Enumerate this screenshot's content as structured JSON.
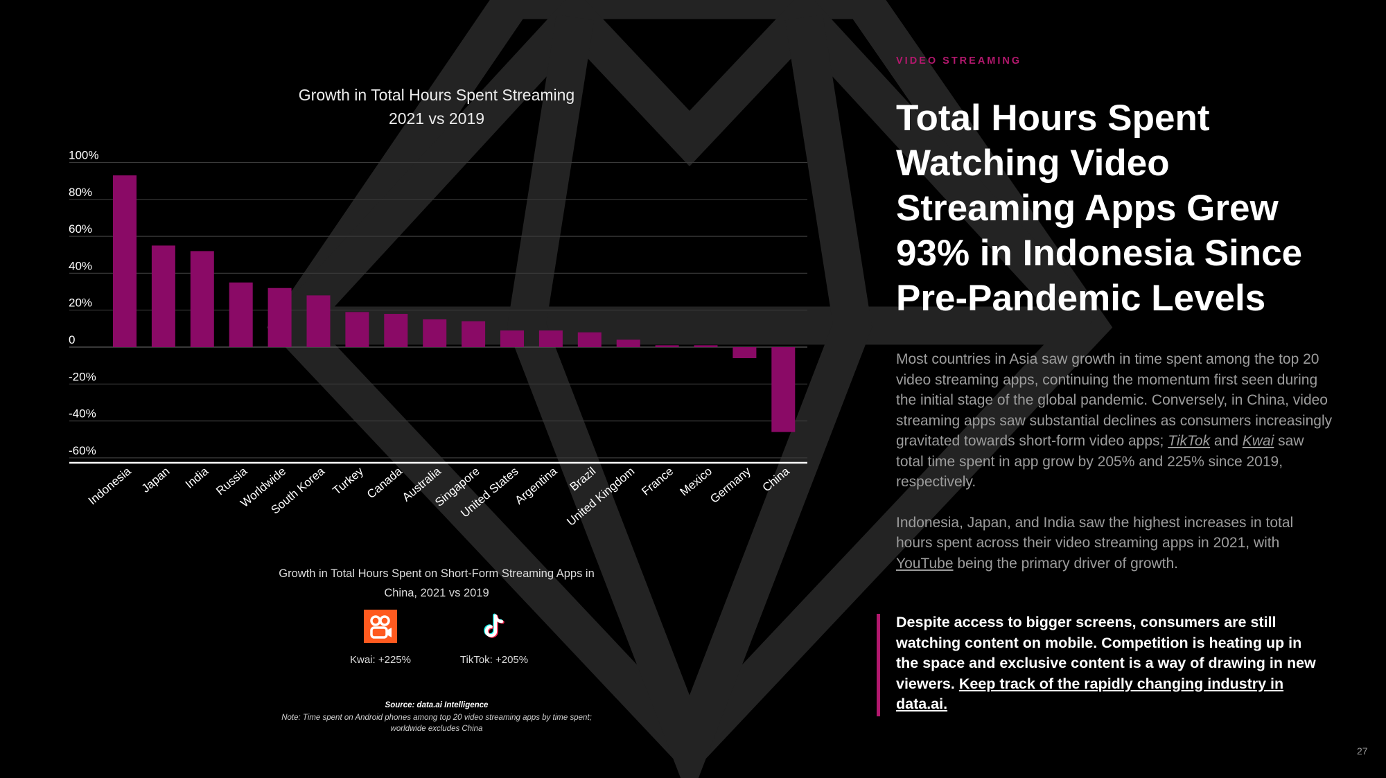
{
  "chart_data": {
    "type": "bar",
    "title": "Growth in Total Hours Spent Streaming",
    "subtitle": "2021 vs 2019",
    "categories": [
      "Indonesia",
      "Japan",
      "India",
      "Russia",
      "Worldwide",
      "South Korea",
      "Turkey",
      "Canada",
      "Australia",
      "Singapore",
      "United States",
      "Argentina",
      "Brazil",
      "United Kingdom",
      "France",
      "Mexico",
      "Germany",
      "China"
    ],
    "values": [
      93,
      55,
      52,
      35,
      32,
      28,
      19,
      18,
      15,
      14,
      9,
      9,
      8,
      4,
      1,
      1,
      -6,
      -46
    ],
    "y_ticks": [
      "100%",
      "80%",
      "60%",
      "40%",
      "20%",
      "0",
      "-20%",
      "-40%",
      "-60%"
    ],
    "y_tick_values": [
      100,
      80,
      60,
      40,
      20,
      0,
      -20,
      -40,
      -60
    ],
    "ylim": [
      -60,
      100
    ],
    "unit": "%",
    "grid": true,
    "bar_color": "#8a0a66"
  },
  "short_form": {
    "title": "Growth in Total Hours Spent on Short-Form Streaming Apps in China, 2021 vs 2019",
    "apps": [
      {
        "name": "Kwai",
        "label": "Kwai: +225%",
        "growth": 225,
        "icon": "kwai-logo-icon",
        "color": "#ff5a1f"
      },
      {
        "name": "TikTok",
        "label": "TikTok: +205%",
        "growth": 205,
        "icon": "tiktok-logo-icon"
      }
    ]
  },
  "source": {
    "main": "Source: data.ai Intelligence",
    "note": "Note: Time spent on Android phones among top 20 video streaming apps by time spent; worldwide excludes China"
  },
  "article": {
    "eyebrow": "VIDEO STREAMING",
    "headline": "Total Hours Spent Watching Video Streaming Apps Grew 93% in Indonesia Since Pre-Pandemic Levels",
    "p1_a": "Most countries in Asia saw growth in time spent among the top 20 video streaming apps, continuing the momentum first seen during the initial stage of the global pandemic. Conversely, in China, video streaming apps saw substantial declines as consumers increasingly gravitated towards short-form video apps; ",
    "p1_link1": "TikTok",
    "p1_b": " and ",
    "p1_link2": "Kwai",
    "p1_c": " saw total time spent in app grow by 205% and 225% since 2019, respectively.",
    "p2_a": "Indonesia, Japan, and India saw the highest increases in total hours spent across their video streaming apps in 2021, with ",
    "p2_link": "YouTube",
    "p2_b": " being the primary driver of growth.",
    "callout_text": "Despite access to bigger screens, consumers are still watching content on mobile. Competition is heating up in the space and exclusive content is a way of drawing in new viewers. ",
    "callout_link": "Keep track of the rapidly changing industry in data.ai."
  },
  "colors": {
    "accent": "#b2186d",
    "background": "#000000"
  },
  "page_number": "27"
}
